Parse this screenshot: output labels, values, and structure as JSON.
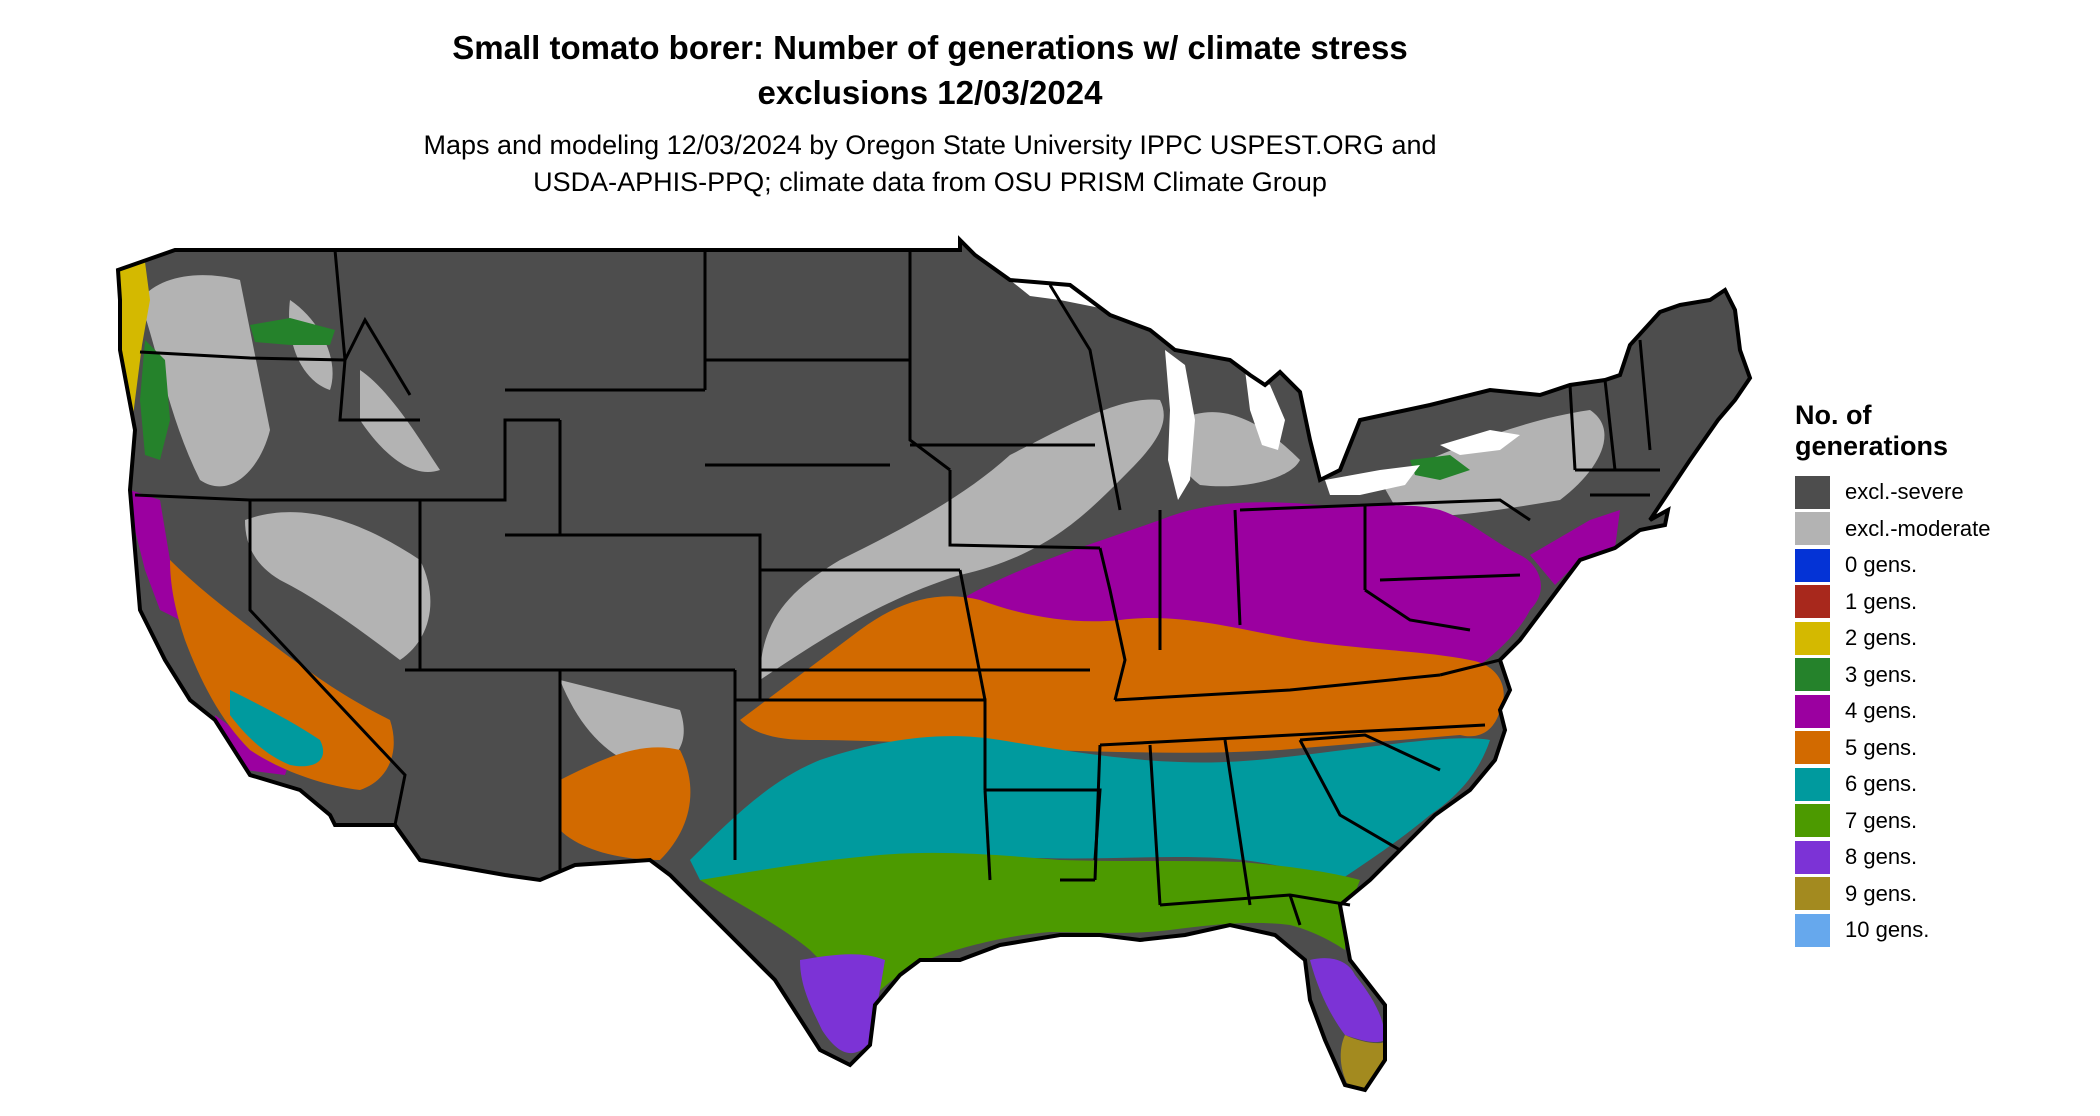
{
  "title": {
    "line1": "Small tomato borer: Number of generations w/ climate stress",
    "line2": "exclusions 12/03/2024"
  },
  "subtitle": {
    "line1": "Maps and modeling 12/03/2024 by Oregon State University IPPC USPEST.ORG and",
    "line2": "USDA-APHIS-PPQ; climate data from OSU PRISM Climate Group"
  },
  "legend": {
    "title_line1": "No. of",
    "title_line2": "generations",
    "items": [
      {
        "label": "excl.-severe",
        "color": "#4d4d4d"
      },
      {
        "label": "excl.-moderate",
        "color": "#b3b3b3"
      },
      {
        "label": "0 gens.",
        "color": "#0433d6"
      },
      {
        "label": "1 gens.",
        "color": "#a8281c"
      },
      {
        "label": "2 gens.",
        "color": "#d4b900"
      },
      {
        "label": "3 gens.",
        "color": "#25822b"
      },
      {
        "label": "4 gens.",
        "color": "#9b00a0"
      },
      {
        "label": "5 gens.",
        "color": "#d26a00"
      },
      {
        "label": "6 gens.",
        "color": "#009a9e"
      },
      {
        "label": "7 gens.",
        "color": "#4c9a00"
      },
      {
        "label": "8 gens.",
        "color": "#7c33d6"
      },
      {
        "label": "9 gens.",
        "color": "#a38a1f"
      },
      {
        "label": "10 gens.",
        "color": "#66a8ed"
      }
    ]
  },
  "map": {
    "region": "Contiguous United States",
    "colors": {
      "border": "#000000",
      "severe": "#4d4d4d",
      "moderate": "#b3b3b3",
      "g2": "#d4b900",
      "g3": "#25822b",
      "g4": "#9b00a0",
      "g5": "#d26a00",
      "g6": "#009a9e",
      "g7": "#4c9a00",
      "g8": "#7c33d6",
      "g9": "#a38a1f"
    }
  }
}
